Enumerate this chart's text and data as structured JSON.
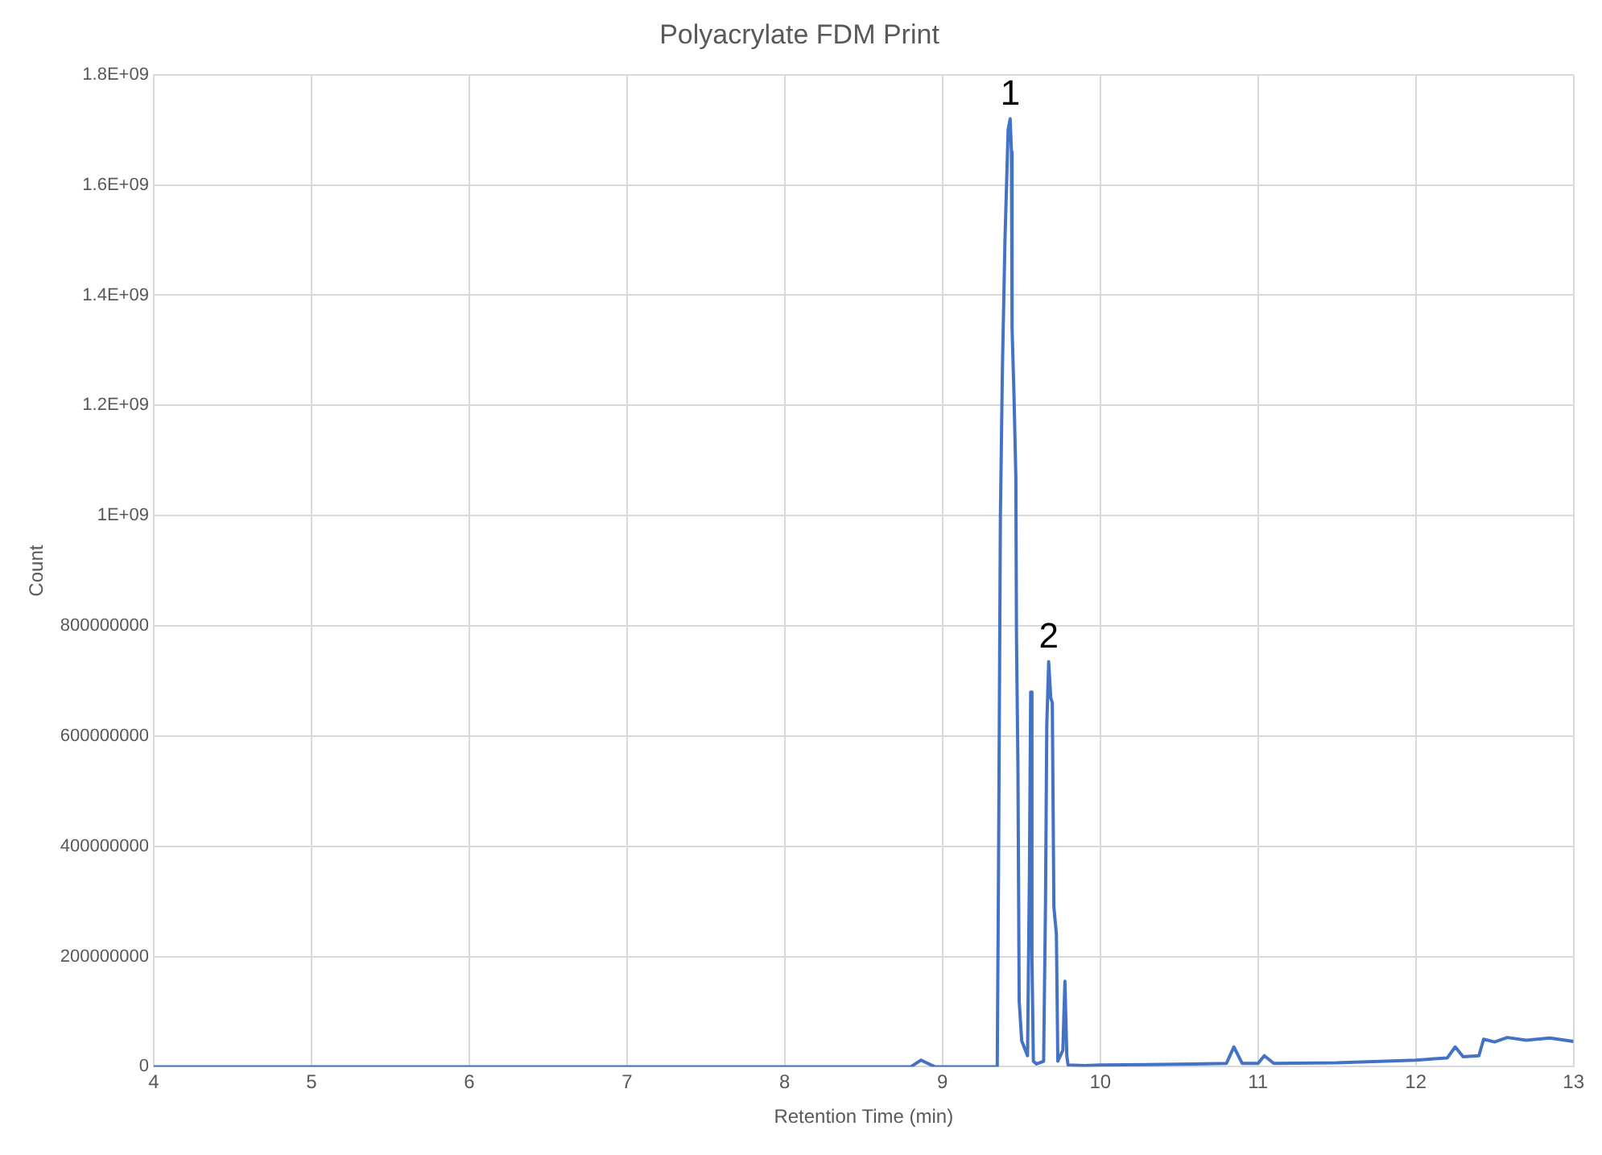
{
  "chart_data": {
    "type": "line",
    "title": "Polyacrylate FDM Print",
    "xlabel": "Retention Time (min)",
    "ylabel": "Count",
    "xlim": [
      4,
      13
    ],
    "xticks": [
      4,
      5,
      6,
      7,
      8,
      9,
      10,
      11,
      12,
      13
    ],
    "ylim": [
      0,
      1800000000
    ],
    "yticks": [
      0,
      200000000,
      400000000,
      600000000,
      800000000,
      {
        "value": 1000000000,
        "label": "1E+09"
      },
      {
        "value": 1200000000,
        "label": "1.2E+09"
      },
      {
        "value": 1400000000,
        "label": "1.4E+09"
      },
      {
        "value": 1600000000,
        "label": "1.6E+09"
      },
      {
        "value": 1800000000,
        "label": "1.8E+09"
      }
    ],
    "grid": true,
    "legend": false,
    "marker": "none",
    "line_style": "solid",
    "annotations": [
      {
        "text": "1",
        "x": 9.43,
        "y": 1720000000
      },
      {
        "text": "2",
        "x": 9.673,
        "y": 735000000
      }
    ],
    "series": [
      {
        "color": "#4472c4",
        "x": [
          4,
          8.8,
          8.864,
          8.95,
          9.347,
          9.355,
          9.367,
          9.38,
          9.396,
          9.416,
          9.429,
          9.437,
          9.441,
          9.453,
          9.465,
          9.469,
          9.478,
          9.486,
          9.502,
          9.539,
          9.551,
          9.559,
          9.567,
          9.576,
          9.596,
          9.641,
          9.653,
          9.661,
          9.673,
          9.686,
          9.696,
          9.706,
          9.722,
          9.731,
          9.747,
          9.763,
          9.776,
          9.788,
          9.796,
          9.9,
          10.0,
          10.3,
          10.6,
          10.8,
          10.847,
          10.9,
          11.0,
          11.04,
          11.1,
          11.5,
          12.0,
          12.2,
          12.25,
          12.3,
          12.4,
          12.43,
          12.5,
          12.58,
          12.7,
          12.85,
          13.0
        ],
        "values": [
          0,
          0,
          12000000,
          0,
          0,
          350000000,
          1000000000,
          1270000000,
          1500000000,
          1700000000,
          1720000000,
          1660000000,
          1340000000,
          1220000000,
          1070000000,
          780000000,
          550000000,
          120000000,
          47000000,
          20000000,
          350000000,
          680000000,
          200000000,
          10000000,
          5000000,
          10000000,
          300000000,
          620000000,
          735000000,
          670000000,
          660000000,
          290000000,
          240000000,
          10000000,
          20000000,
          30000000,
          155000000,
          20000000,
          3000000,
          2000000,
          3000000,
          4000000,
          5000000,
          6000000,
          36000000,
          6000000,
          6000000,
          20000000,
          6000000,
          7000000,
          12000000,
          16000000,
          36000000,
          18000000,
          20000000,
          50000000,
          45000000,
          53000000,
          48000000,
          52000000,
          46000000
        ]
      }
    ]
  }
}
